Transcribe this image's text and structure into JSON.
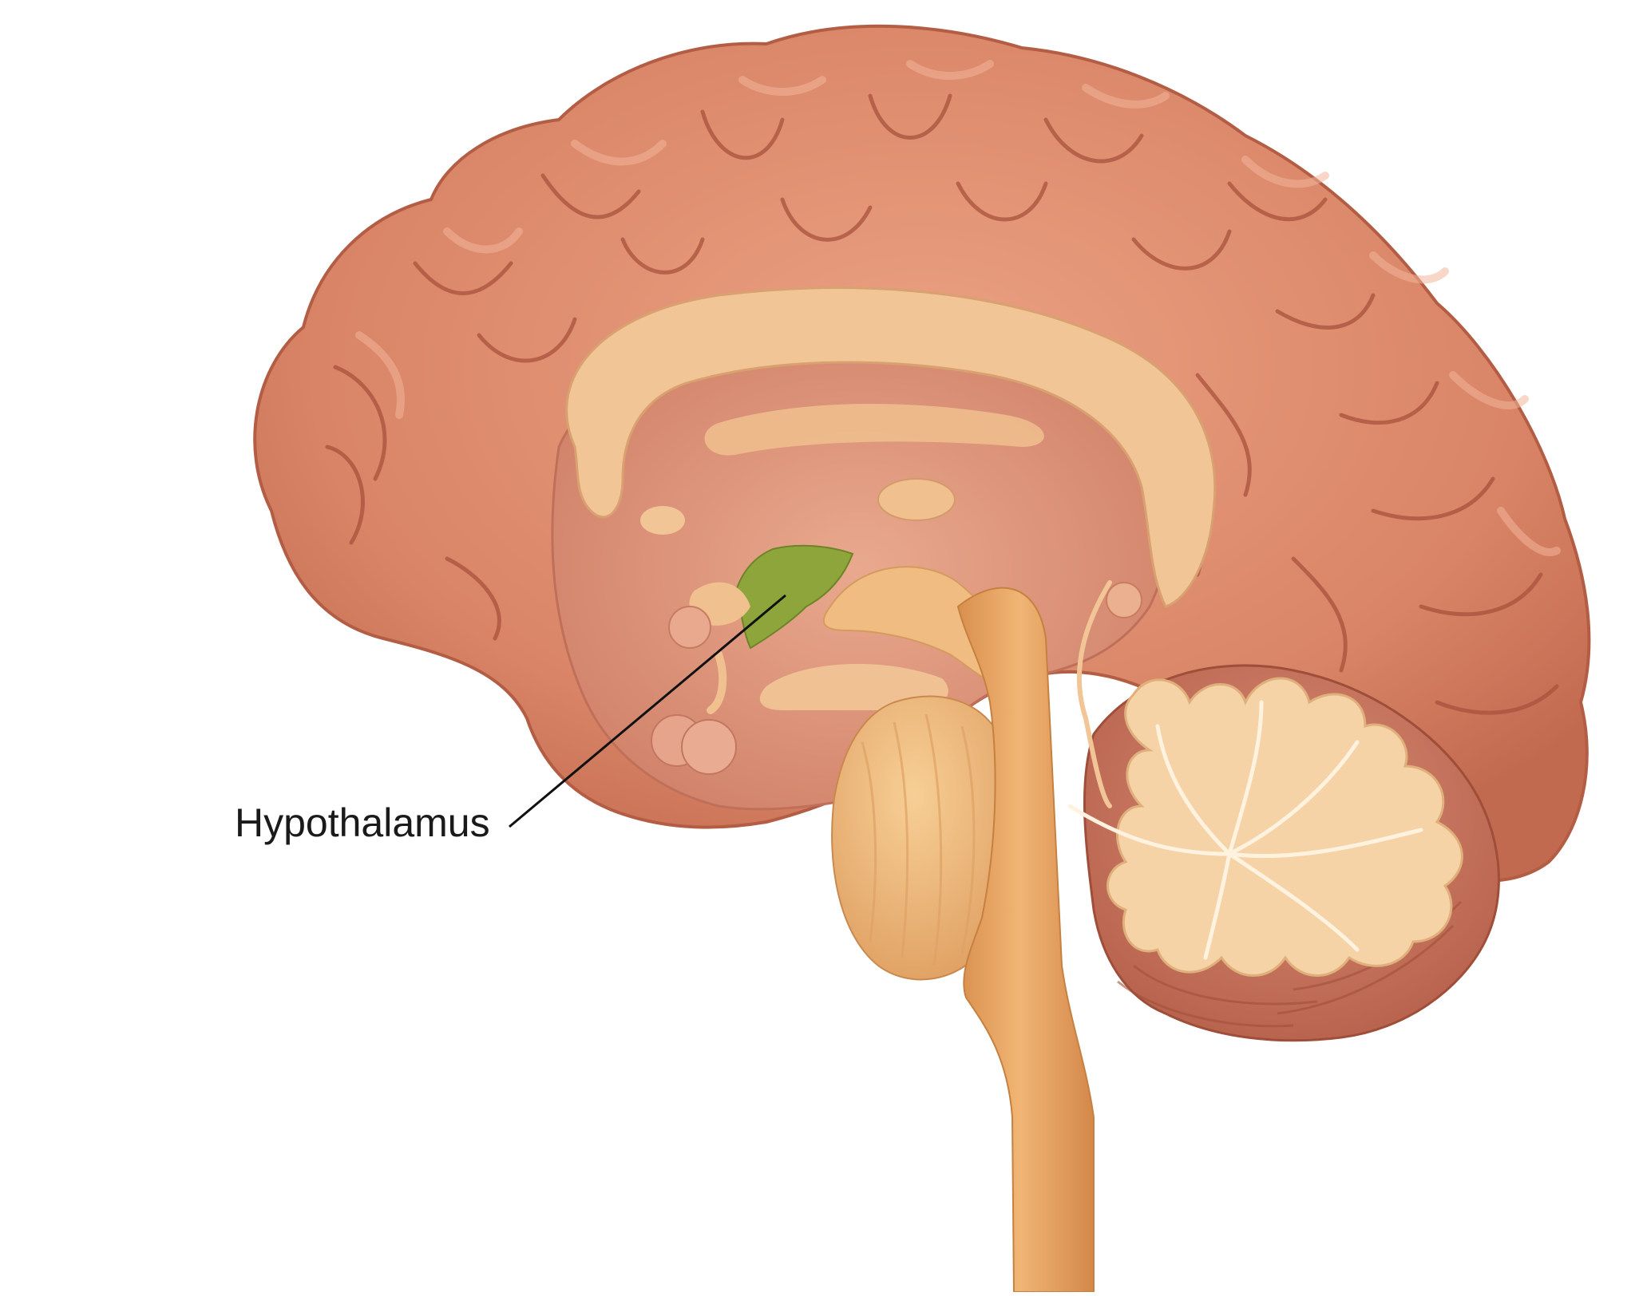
{
  "label": {
    "text": "Hypothalamus"
  },
  "colors": {
    "cortex": "#d98466",
    "cortex_dark": "#b45d45",
    "cortex_light": "#f0aa8c",
    "white_matter": "#f2c596",
    "brainstem": "#e6a261",
    "cerebellum_tree": "#f6d2a7",
    "hypothalamus": "#8da53b",
    "leader_line": "#111111"
  }
}
